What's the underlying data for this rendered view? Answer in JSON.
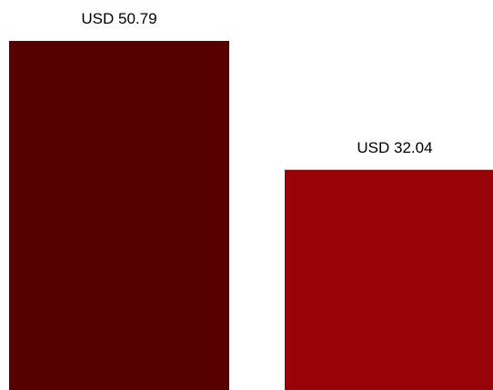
{
  "chart_data": {
    "type": "bar",
    "categories": [
      "",
      ""
    ],
    "values": [
      50.79,
      32.04
    ],
    "value_labels": [
      "USD 50.79",
      "USD 32.04"
    ],
    "colors": [
      "#560000",
      "#970309"
    ],
    "title": "",
    "xlabel": "",
    "ylabel": "",
    "grid": false,
    "legend": "none"
  }
}
